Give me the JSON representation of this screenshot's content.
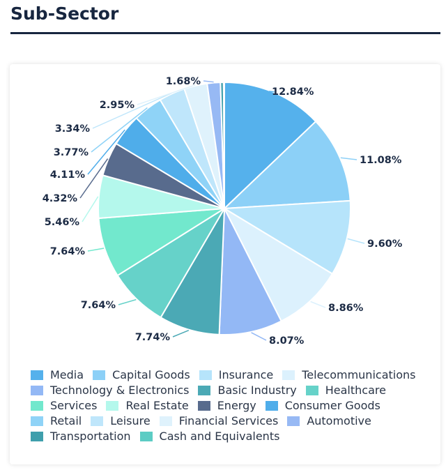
{
  "header": {
    "title": "Sub-Sector"
  },
  "chart_data": {
    "type": "pie",
    "title": "Sub-Sector",
    "legend_position": "bottom",
    "slices": [
      {
        "name": "Media",
        "value": 12.84,
        "label": "12.84%",
        "color": "#55b1ec"
      },
      {
        "name": "Capital Goods",
        "value": 11.08,
        "label": "11.08%",
        "color": "#8cd0f7"
      },
      {
        "name": "Insurance",
        "value": 9.6,
        "label": "9.60%",
        "color": "#b6e4fb"
      },
      {
        "name": "Telecommunications",
        "value": 8.86,
        "label": "8.86%",
        "color": "#dcf1fd"
      },
      {
        "name": "Technology & Electronics",
        "value": 8.07,
        "label": "8.07%",
        "color": "#93b8f5"
      },
      {
        "name": "Basic Industry",
        "value": 7.74,
        "label": "7.74%",
        "color": "#4ba9b5"
      },
      {
        "name": "Healthcare",
        "value": 7.64,
        "label": "7.64%",
        "color": "#66d2c9"
      },
      {
        "name": "Services",
        "value": 7.64,
        "label": "7.64%",
        "color": "#72e8cd"
      },
      {
        "name": "Real Estate",
        "value": 5.46,
        "label": "5.46%",
        "color": "#b4f8ec"
      },
      {
        "name": "Energy",
        "value": 4.32,
        "label": "4.32%",
        "color": "#586b8d"
      },
      {
        "name": "Consumer Goods",
        "value": 4.11,
        "label": "4.11%",
        "color": "#4fadea"
      },
      {
        "name": "Retail",
        "value": 3.77,
        "label": "3.77%",
        "color": "#8fd3f7"
      },
      {
        "name": "Leisure",
        "value": 3.34,
        "label": "3.34%",
        "color": "#bfe6fb"
      },
      {
        "name": "Financial Services",
        "value": 2.95,
        "label": "2.95%",
        "color": "#dff2fc"
      },
      {
        "name": "Automotive",
        "value": 1.68,
        "label": "1.68%",
        "color": "#97b9f4"
      },
      {
        "name": "Transportation",
        "value": 0.4,
        "label": "",
        "color": "#3f9fac"
      },
      {
        "name": "Cash and Equivalents",
        "value": 0.1,
        "label": "",
        "color": "#5cccc4"
      }
    ]
  }
}
